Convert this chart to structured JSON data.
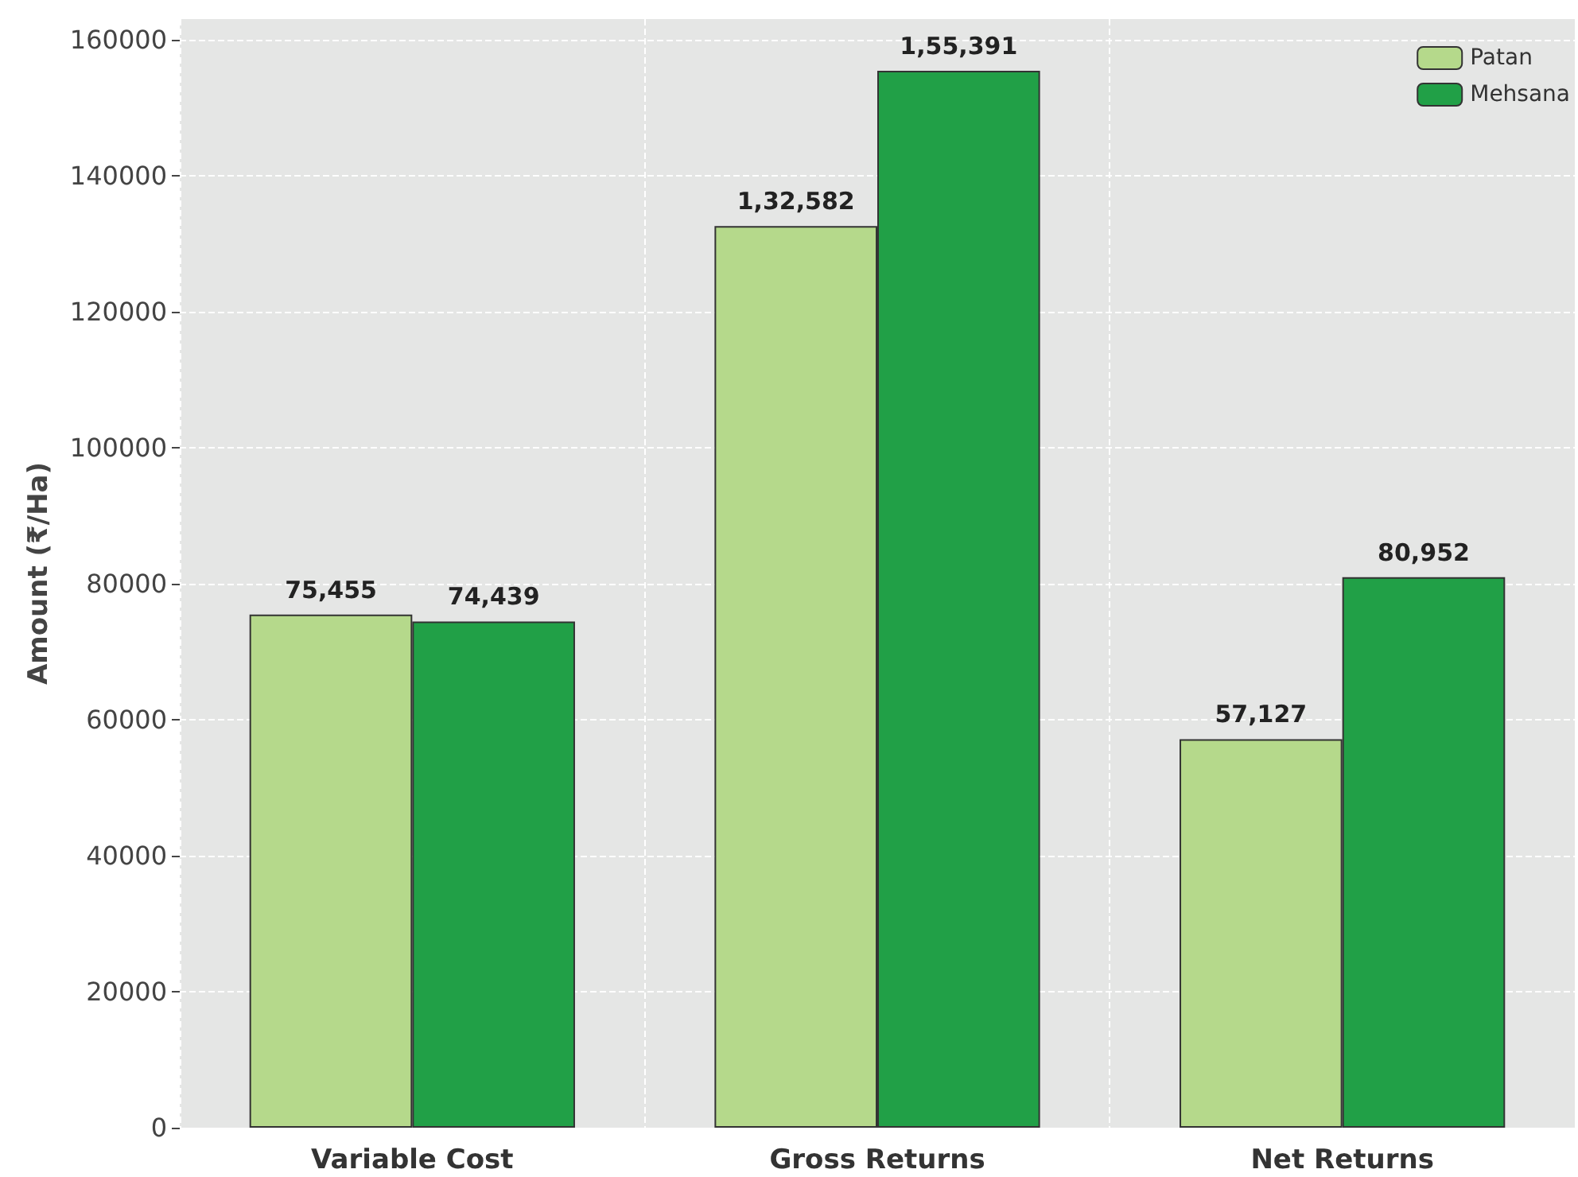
{
  "chart_data": {
    "type": "bar",
    "ylabel": "Amount (₹/Ha)",
    "categories": [
      "Variable Cost",
      "Gross Returns",
      "Net Returns"
    ],
    "series": [
      {
        "name": "Patan",
        "color": "#b5d98b",
        "values": [
          75455,
          132582,
          57127
        ],
        "value_labels": [
          "75,455",
          "1,32,582",
          "57,127"
        ]
      },
      {
        "name": "Mehsana",
        "color": "#21a047",
        "values": [
          74439,
          155391,
          80952
        ],
        "value_labels": [
          "74,439",
          "1,55,391",
          "80,952"
        ]
      }
    ],
    "ylim": [
      0,
      163000
    ],
    "yticks": [
      0,
      20000,
      40000,
      60000,
      80000,
      100000,
      120000,
      140000,
      160000
    ],
    "grid": true,
    "legend": "top right"
  }
}
